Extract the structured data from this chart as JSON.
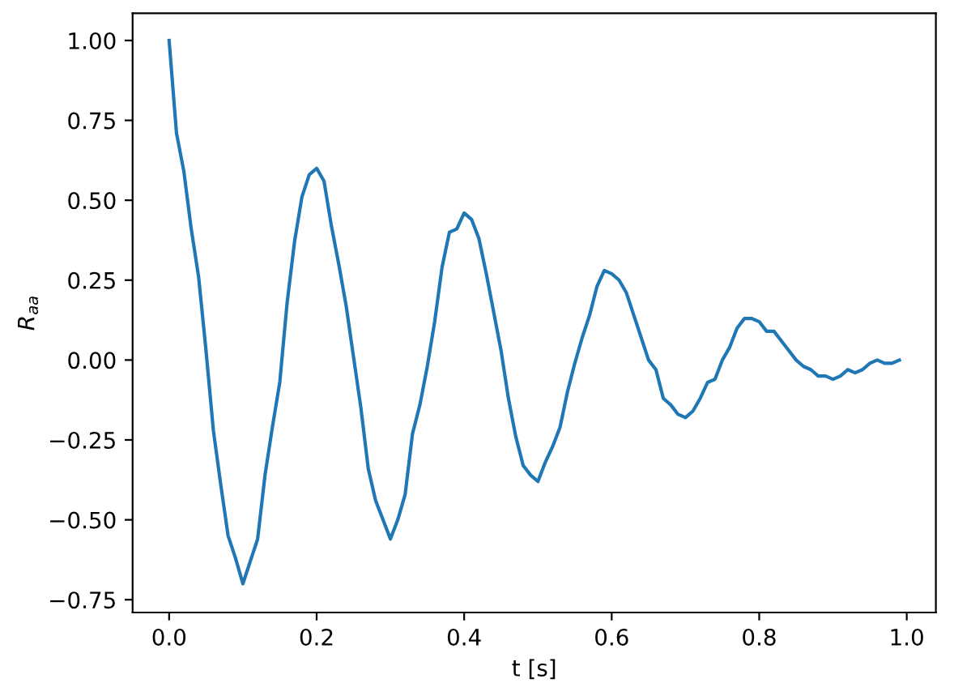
{
  "chart_data": {
    "type": "line",
    "xlabel": "t [s]",
    "ylabel": "R$_{aa}$",
    "x": [
      0,
      0.01,
      0.02,
      0.03,
      0.04,
      0.05,
      0.06,
      0.07,
      0.08,
      0.09,
      0.1,
      0.11,
      0.12,
      0.13,
      0.14,
      0.15,
      0.16,
      0.17,
      0.18,
      0.19,
      0.2,
      0.21,
      0.22,
      0.23,
      0.24,
      0.25,
      0.26,
      0.27,
      0.28,
      0.29,
      0.3,
      0.31,
      0.32,
      0.33,
      0.34,
      0.35,
      0.36,
      0.37,
      0.38,
      0.39,
      0.4,
      0.41,
      0.42,
      0.43,
      0.44,
      0.45,
      0.46,
      0.47,
      0.48,
      0.49,
      0.5,
      0.51,
      0.52,
      0.53,
      0.54,
      0.55,
      0.56,
      0.57,
      0.58,
      0.59,
      0.6,
      0.61,
      0.62,
      0.63,
      0.64,
      0.65,
      0.66,
      0.67,
      0.68,
      0.69,
      0.7,
      0.71,
      0.72,
      0.73,
      0.74,
      0.75,
      0.76,
      0.77,
      0.78,
      0.79,
      0.8,
      0.81,
      0.82,
      0.83,
      0.84,
      0.85,
      0.86,
      0.87,
      0.88,
      0.89,
      0.9,
      0.91,
      0.92,
      0.93,
      0.94,
      0.95,
      0.96,
      0.97,
      0.98,
      0.99
    ],
    "series": [
      {
        "color": "#1f77b4",
        "values": [
          1.0,
          0.71,
          0.59,
          0.41,
          0.26,
          0.03,
          -0.22,
          -0.39,
          -0.55,
          -0.62,
          -0.7,
          -0.63,
          -0.56,
          -0.36,
          -0.21,
          -0.07,
          0.18,
          0.37,
          0.51,
          0.58,
          0.6,
          0.56,
          0.42,
          0.3,
          0.17,
          0.01,
          -0.15,
          -0.34,
          -0.44,
          -0.5,
          -0.56,
          -0.5,
          -0.42,
          -0.23,
          -0.14,
          -0.02,
          0.12,
          0.29,
          0.4,
          0.41,
          0.46,
          0.44,
          0.38,
          0.27,
          0.15,
          0.03,
          -0.12,
          -0.24,
          -0.33,
          -0.36,
          -0.38,
          -0.32,
          -0.27,
          -0.21,
          -0.1,
          -0.01,
          0.07,
          0.14,
          0.23,
          0.28,
          0.27,
          0.25,
          0.21,
          0.14,
          0.07,
          0.0,
          -0.03,
          -0.12,
          -0.14,
          -0.17,
          -0.18,
          -0.16,
          -0.12,
          -0.07,
          -0.06,
          0.0,
          0.04,
          0.1,
          0.13,
          0.13,
          0.12,
          0.09,
          0.09,
          0.06,
          0.03,
          0.0,
          -0.02,
          -0.03,
          -0.05,
          -0.05,
          -0.06,
          -0.05,
          -0.03,
          -0.04,
          -0.03,
          -0.01,
          0.0,
          -0.01,
          -0.01,
          0.0
        ]
      }
    ],
    "xlim": [
      -0.0495,
      1.0395
    ],
    "ylim": [
      -0.79,
      1.085
    ],
    "xticks": [
      {
        "value": 0,
        "label": "0.0"
      },
      0.2,
      0.4,
      0.6,
      0.8,
      {
        "value": 1,
        "label": "1.0"
      }
    ],
    "yticks": [
      {
        "value": -0.75,
        "label": "−0.75"
      },
      {
        "value": -0.5,
        "label": "−0.50"
      },
      {
        "value": -0.25,
        "label": "−0.25"
      },
      {
        "value": 0,
        "label": "0.00"
      },
      {
        "value": 0.25,
        "label": "0.25"
      },
      {
        "value": 0.5,
        "label": "0.50"
      },
      {
        "value": 0.75,
        "label": "0.75"
      },
      {
        "value": 1,
        "label": "1.00"
      }
    ],
    "grid": false,
    "legend": false,
    "line_style": "solid"
  }
}
